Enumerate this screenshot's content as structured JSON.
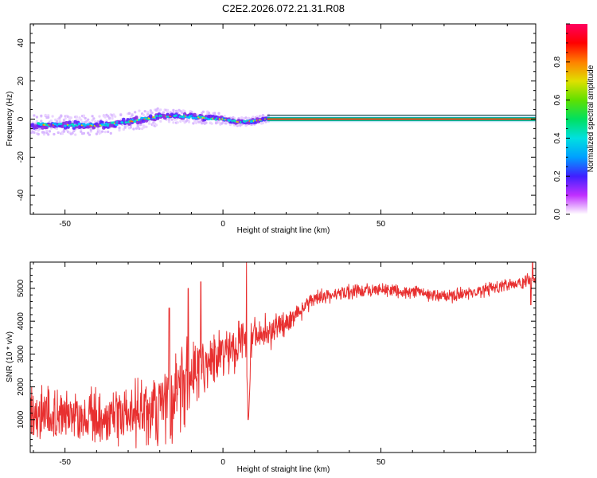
{
  "title": "C2E2.2026.072.21.31.R08",
  "chart_data": [
    {
      "type": "heatmap",
      "name": "spectrogram",
      "xlabel": "Height of straight line (km)",
      "ylabel": "Frequency (Hz)",
      "xlim": [
        -61,
        99
      ],
      "ylim": [
        -50,
        50
      ],
      "xticks": [
        "-50",
        "0",
        "50"
      ],
      "yticks": [
        "40",
        "20",
        "0",
        "-20",
        "-40"
      ],
      "colorbar": {
        "label": "Normalized spectral amplitude",
        "range": [
          0,
          1
        ],
        "ticks": [
          "0.0",
          "0.2",
          "0.4",
          "0.6",
          "0.8"
        ],
        "colors": [
          "#ffffff",
          "#c030ff",
          "#4020ff",
          "#00a0ff",
          "#00e0e0",
          "#00e060",
          "#60e000",
          "#e0e000",
          "#ff8000",
          "#ff0000",
          "#ff0060"
        ]
      },
      "ridge": [
        {
          "x": -60,
          "y": -3
        },
        {
          "x": -50,
          "y": -3
        },
        {
          "x": -40,
          "y": -3.5
        },
        {
          "x": -30,
          "y": -1.5
        },
        {
          "x": -20,
          "y": 1.5
        },
        {
          "x": -12,
          "y": 1.5
        },
        {
          "x": -5,
          "y": 0.5
        },
        {
          "x": 0,
          "y": 0
        },
        {
          "x": 5,
          "y": -1.5
        },
        {
          "x": 10,
          "y": -1
        },
        {
          "x": 15,
          "y": 0.5
        },
        {
          "x": 99,
          "y": 0
        }
      ],
      "tone": {
        "from": 14,
        "to": 99,
        "freq": 0
      }
    },
    {
      "type": "line",
      "name": "snr",
      "xlabel": "Height of straight line (km)",
      "ylabel": "SNR (10 * v/v)",
      "xlim": [
        -61,
        99
      ],
      "ylim": [
        0,
        5800
      ],
      "xticks": [
        "-50",
        "0",
        "50"
      ],
      "yticks": [
        "5000",
        "4000",
        "3000",
        "2000",
        "1000"
      ],
      "color": "#e83030",
      "trend": [
        {
          "x": -61,
          "y": 1150
        },
        {
          "x": -50,
          "y": 1200
        },
        {
          "x": -40,
          "y": 1050
        },
        {
          "x": -30,
          "y": 1150
        },
        {
          "x": -20,
          "y": 1400
        },
        {
          "x": -15,
          "y": 1900
        },
        {
          "x": -10,
          "y": 2300
        },
        {
          "x": -5,
          "y": 2700
        },
        {
          "x": 0,
          "y": 2900
        },
        {
          "x": 5,
          "y": 3200
        },
        {
          "x": 10,
          "y": 3500
        },
        {
          "x": 15,
          "y": 3700
        },
        {
          "x": 20,
          "y": 3950
        },
        {
          "x": 25,
          "y": 4350
        },
        {
          "x": 30,
          "y": 4700
        },
        {
          "x": 40,
          "y": 4900
        },
        {
          "x": 50,
          "y": 4950
        },
        {
          "x": 60,
          "y": 4900
        },
        {
          "x": 70,
          "y": 4750
        },
        {
          "x": 80,
          "y": 4900
        },
        {
          "x": 90,
          "y": 5100
        },
        {
          "x": 99,
          "y": 5250
        }
      ],
      "noise": [
        {
          "x": -61,
          "a": 800
        },
        {
          "x": -30,
          "a": 900
        },
        {
          "x": -15,
          "a": 1400
        },
        {
          "x": 0,
          "a": 900
        },
        {
          "x": 15,
          "a": 500
        },
        {
          "x": 25,
          "a": 300
        },
        {
          "x": 35,
          "a": 200
        },
        {
          "x": 99,
          "a": 220
        }
      ],
      "spikes": [
        {
          "x": -17,
          "y": 4400
        },
        {
          "x": -11,
          "y": 5000
        },
        {
          "x": -7,
          "y": 5200
        },
        {
          "x": 5,
          "y": 4000
        },
        {
          "x": 7.5,
          "y": 5800
        },
        {
          "x": 8,
          "y": 1000
        },
        {
          "x": 98,
          "y": 5800
        },
        {
          "x": 97.5,
          "y": 4500
        }
      ]
    }
  ]
}
